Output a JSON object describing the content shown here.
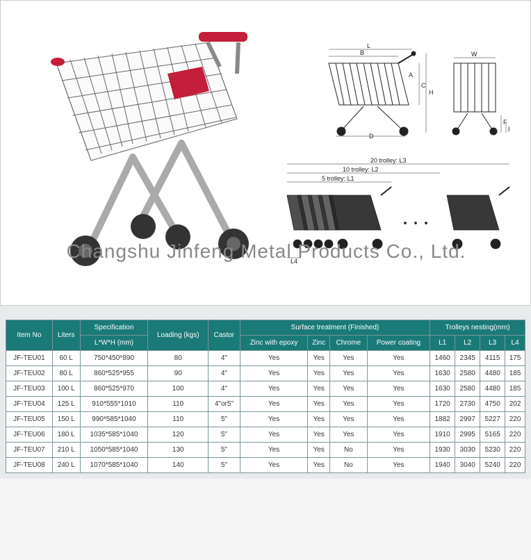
{
  "watermark": "Changshu Jinfeng Metal Products Co., Ltd.",
  "diagrams": {
    "dimensions": {
      "labels": [
        "L",
        "B",
        "A",
        "C",
        "H",
        "D",
        "W",
        "F",
        "E"
      ]
    },
    "nesting": {
      "label_20": "20 trolley: L3",
      "label_10": "10 trolley: L2",
      "label_5": "5 trolley: L1",
      "label_l4": "L4"
    }
  },
  "table": {
    "header_colors": {
      "bg": "#1a7a78",
      "text": "#ffffff"
    },
    "border_color": "#7a9599",
    "headers": {
      "item_no": "Item No",
      "liters": "Liters",
      "specification": "Specification",
      "spec_sub": "L*W*H (mm)",
      "loading": "Loading (kgs)",
      "castor": "Castor",
      "surface": "Surface treatment (Finished)",
      "surface_sub": [
        "Zinc with epoxy",
        "Zinc",
        "Chrome",
        "Power coating"
      ],
      "nesting": "Trolleys nesting(mm)",
      "nesting_sub": [
        "L1",
        "L2",
        "L3",
        "L4"
      ]
    },
    "rows": [
      {
        "item": "JF-TEU01",
        "liters": "60 L",
        "spec": "750*450*890",
        "loading": "80",
        "castor": "4\"",
        "zinc_epoxy": "Yes",
        "zinc": "Yes",
        "chrome": "Yes",
        "power": "Yes",
        "l1": "1460",
        "l2": "2345",
        "l3": "4115",
        "l4": "175"
      },
      {
        "item": "JF-TEU02",
        "liters": "80 L",
        "spec": "860*525*955",
        "loading": "90",
        "castor": "4\"",
        "zinc_epoxy": "Yes",
        "zinc": "Yes",
        "chrome": "Yes",
        "power": "Yes",
        "l1": "1630",
        "l2": "2580",
        "l3": "4480",
        "l4": "185"
      },
      {
        "item": "JF-TEU03",
        "liters": "100 L",
        "spec": "860*525*970",
        "loading": "100",
        "castor": "4\"",
        "zinc_epoxy": "Yes",
        "zinc": "Yes",
        "chrome": "Yes",
        "power": "Yes",
        "l1": "1630",
        "l2": "2580",
        "l3": "4480",
        "l4": "185"
      },
      {
        "item": "JF-TEU04",
        "liters": "125 L",
        "spec": "910*555*1010",
        "loading": "110",
        "castor": "4\"or5\"",
        "zinc_epoxy": "Yes",
        "zinc": "Yes",
        "chrome": "Yes",
        "power": "Yes",
        "l1": "1720",
        "l2": "2730",
        "l3": "4750",
        "l4": "202"
      },
      {
        "item": "JF-TEU05",
        "liters": "150 L",
        "spec": "990*585*1040",
        "loading": "110",
        "castor": "5\"",
        "zinc_epoxy": "Yes",
        "zinc": "Yes",
        "chrome": "Yes",
        "power": "Yes",
        "l1": "1882",
        "l2": "2997",
        "l3": "5227",
        "l4": "220"
      },
      {
        "item": "JF-TEU06",
        "liters": "180 L",
        "spec": "1035*585*1040",
        "loading": "120",
        "castor": "5\"",
        "zinc_epoxy": "Yes",
        "zinc": "Yes",
        "chrome": "Yes",
        "power": "Yes",
        "l1": "1910",
        "l2": "2995",
        "l3": "5165",
        "l4": "220"
      },
      {
        "item": "JF-TEU07",
        "liters": "210 L",
        "spec": "1050*585*1040",
        "loading": "130",
        "castor": "5\"",
        "zinc_epoxy": "Yes",
        "zinc": "Yes",
        "chrome": "No",
        "power": "Yes",
        "l1": "1930",
        "l2": "3030",
        "l3": "5230",
        "l4": "220"
      },
      {
        "item": "JF-TEU08",
        "liters": "240 L",
        "spec": "1070*585*1040",
        "loading": "140",
        "castor": "5\"",
        "zinc_epoxy": "Yes",
        "zinc": "Yes",
        "chrome": "No",
        "power": "Yes",
        "l1": "1940",
        "l2": "3040",
        "l3": "5240",
        "l4": "220"
      }
    ]
  }
}
